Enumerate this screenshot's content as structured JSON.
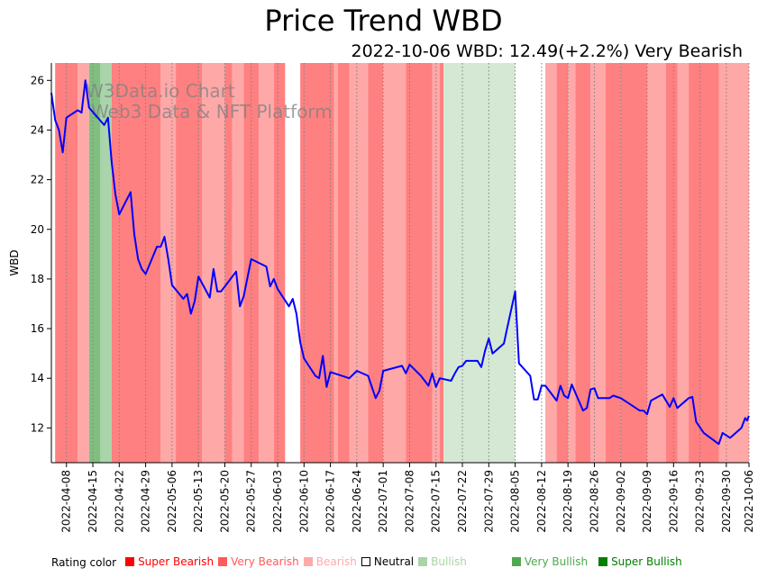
{
  "header": {
    "title": "Price Trend WBD",
    "subtitle": "2022-10-06 WBD: 12.49(+2.2%) Very Bearish"
  },
  "watermark": {
    "line1": "W3Data.io Chart",
    "line2": "Web3 Data & NFT Platform"
  },
  "legend": {
    "label": "Rating color",
    "items": [
      {
        "name": "Super Bearish",
        "color": "#ff0000",
        "text_color": "#ff0000"
      },
      {
        "name": "Very Bearish",
        "color": "#ff5a5a",
        "text_color": "#ff5a5a"
      },
      {
        "name": "Bearish",
        "color": "#ffaaaa",
        "text_color": "#ffaaaa"
      },
      {
        "name": "Neutral",
        "color": "#ffffff",
        "text_color": "#000000"
      },
      {
        "name": "Bullish",
        "color": "#a8d4a8",
        "text_color": "#a8d4a8"
      },
      {
        "name": "Very Bullish",
        "color": "#4fa84f",
        "text_color": "#4fa84f"
      },
      {
        "name": "Super Bullish",
        "color": "#007f00",
        "text_color": "#007f00"
      }
    ]
  },
  "chart_data": {
    "type": "line",
    "title": "Price Trend WBD",
    "subtitle": "2022-10-06 WBD: 12.49(+2.2%) Very Bearish",
    "xlabel": "",
    "ylabel": "WBD",
    "xlim": [
      "2022-04-04",
      "2022-10-06"
    ],
    "ylim": [
      10.6,
      26.7
    ],
    "yticks": [
      12,
      14,
      16,
      18,
      20,
      22,
      24,
      26
    ],
    "xticks": [
      "2022-04-08",
      "2022-04-15",
      "2022-04-22",
      "2022-04-29",
      "2022-05-06",
      "2022-05-13",
      "2022-05-20",
      "2022-05-27",
      "2022-06-03",
      "2022-06-10",
      "2022-06-17",
      "2022-06-24",
      "2022-07-01",
      "2022-07-08",
      "2022-07-15",
      "2022-07-22",
      "2022-07-29",
      "2022-08-05",
      "2022-08-12",
      "2022-08-19",
      "2022-08-26",
      "2022-09-02",
      "2022-09-09",
      "2022-09-16",
      "2022-09-23",
      "2022-09-30",
      "2022-10-06"
    ],
    "grid": "vertical dotted at x ticks",
    "line_color": "#0000ff",
    "series": [
      {
        "name": "WBD",
        "points": [
          [
            "2022-04-04",
            25.5
          ],
          [
            "2022-04-05",
            24.4
          ],
          [
            "2022-04-06",
            24.0
          ],
          [
            "2022-04-07",
            23.1
          ],
          [
            "2022-04-08",
            24.5
          ],
          [
            "2022-04-11",
            24.8
          ],
          [
            "2022-04-12",
            24.7
          ],
          [
            "2022-04-13",
            26.0
          ],
          [
            "2022-04-14",
            24.9
          ],
          [
            "2022-04-18",
            24.2
          ],
          [
            "2022-04-19",
            24.5
          ],
          [
            "2022-04-20",
            22.7
          ],
          [
            "2022-04-21",
            21.4
          ],
          [
            "2022-04-22",
            20.6
          ],
          [
            "2022-04-25",
            21.5
          ],
          [
            "2022-04-26",
            19.8
          ],
          [
            "2022-04-27",
            18.8
          ],
          [
            "2022-04-28",
            18.4
          ],
          [
            "2022-04-29",
            18.2
          ],
          [
            "2022-05-02",
            19.3
          ],
          [
            "2022-05-03",
            19.3
          ],
          [
            "2022-05-04",
            19.7
          ],
          [
            "2022-05-05",
            18.8
          ],
          [
            "2022-05-06",
            17.75
          ],
          [
            "2022-05-09",
            17.2
          ],
          [
            "2022-05-10",
            17.4
          ],
          [
            "2022-05-11",
            16.6
          ],
          [
            "2022-05-12",
            17.1
          ],
          [
            "2022-05-13",
            18.1
          ],
          [
            "2022-05-16",
            17.25
          ],
          [
            "2022-05-17",
            18.4
          ],
          [
            "2022-05-18",
            17.5
          ],
          [
            "2022-05-19",
            17.5
          ],
          [
            "2022-05-23",
            18.3
          ],
          [
            "2022-05-24",
            16.9
          ],
          [
            "2022-05-25",
            17.3
          ],
          [
            "2022-05-27",
            18.8
          ],
          [
            "2022-05-31",
            18.5
          ],
          [
            "2022-06-01",
            17.7
          ],
          [
            "2022-06-02",
            18.0
          ],
          [
            "2022-06-03",
            17.6
          ],
          [
            "2022-06-06",
            16.9
          ],
          [
            "2022-06-07",
            17.2
          ],
          [
            "2022-06-08",
            16.6
          ],
          [
            "2022-06-09",
            15.45
          ],
          [
            "2022-06-10",
            14.8
          ],
          [
            "2022-06-13",
            14.1
          ],
          [
            "2022-06-14",
            14.0
          ],
          [
            "2022-06-15",
            14.9
          ],
          [
            "2022-06-16",
            13.65
          ],
          [
            "2022-06-17",
            14.25
          ],
          [
            "2022-06-22",
            14.0
          ],
          [
            "2022-06-24",
            14.3
          ],
          [
            "2022-06-27",
            14.1
          ],
          [
            "2022-06-29",
            13.2
          ],
          [
            "2022-06-30",
            13.5
          ],
          [
            "2022-07-01",
            14.3
          ],
          [
            "2022-07-06",
            14.5
          ],
          [
            "2022-07-07",
            14.2
          ],
          [
            "2022-07-08",
            14.55
          ],
          [
            "2022-07-11",
            14.1
          ],
          [
            "2022-07-13",
            13.7
          ],
          [
            "2022-07-14",
            14.2
          ],
          [
            "2022-07-15",
            13.65
          ],
          [
            "2022-07-16",
            14.0
          ],
          [
            "2022-07-19",
            13.9
          ],
          [
            "2022-07-20",
            14.2
          ],
          [
            "2022-07-21",
            14.45
          ],
          [
            "2022-07-22",
            14.5
          ],
          [
            "2022-07-23",
            14.7
          ],
          [
            "2022-07-26",
            14.7
          ],
          [
            "2022-07-27",
            14.45
          ],
          [
            "2022-07-28",
            15.1
          ],
          [
            "2022-07-29",
            15.6
          ],
          [
            "2022-07-30",
            15.0
          ],
          [
            "2022-08-02",
            15.4
          ],
          [
            "2022-08-03",
            16.1
          ],
          [
            "2022-08-05",
            17.5
          ],
          [
            "2022-08-06",
            14.6
          ],
          [
            "2022-08-09",
            14.1
          ],
          [
            "2022-08-10",
            13.15
          ],
          [
            "2022-08-11",
            13.15
          ],
          [
            "2022-08-12",
            13.7
          ],
          [
            "2022-08-13",
            13.7
          ],
          [
            "2022-08-16",
            13.1
          ],
          [
            "2022-08-17",
            13.7
          ],
          [
            "2022-08-18",
            13.3
          ],
          [
            "2022-08-19",
            13.2
          ],
          [
            "2022-08-20",
            13.75
          ],
          [
            "2022-08-23",
            12.7
          ],
          [
            "2022-08-24",
            12.8
          ],
          [
            "2022-08-25",
            13.55
          ],
          [
            "2022-08-26",
            13.6
          ],
          [
            "2022-08-27",
            13.2
          ],
          [
            "2022-08-30",
            13.2
          ],
          [
            "2022-08-31",
            13.3
          ],
          [
            "2022-09-02",
            13.2
          ],
          [
            "2022-09-07",
            12.7
          ],
          [
            "2022-09-08",
            12.7
          ],
          [
            "2022-09-09",
            12.55
          ],
          [
            "2022-09-10",
            13.1
          ],
          [
            "2022-09-13",
            13.35
          ],
          [
            "2022-09-15",
            12.85
          ],
          [
            "2022-09-16",
            13.2
          ],
          [
            "2022-09-17",
            12.8
          ],
          [
            "2022-09-20",
            13.2
          ],
          [
            "2022-09-21",
            13.25
          ],
          [
            "2022-09-22",
            12.25
          ],
          [
            "2022-09-24",
            11.8
          ],
          [
            "2022-09-28",
            11.35
          ],
          [
            "2022-09-29",
            11.8
          ],
          [
            "2022-10-01",
            11.6
          ],
          [
            "2022-10-04",
            12.0
          ],
          [
            "2022-10-05",
            12.4
          ],
          [
            "2022-10-05T12",
            12.3
          ],
          [
            "2022-10-06",
            12.49
          ]
        ]
      }
    ],
    "rating_bands": [
      {
        "start": "2022-04-05",
        "end": "2022-04-11",
        "rating": "Very Bearish"
      },
      {
        "start": "2022-04-11",
        "end": "2022-04-14",
        "rating": "Bearish"
      },
      {
        "start": "2022-04-14",
        "end": "2022-04-17",
        "rating": "Very Bullish"
      },
      {
        "start": "2022-04-17",
        "end": "2022-04-20",
        "rating": "Bullish"
      },
      {
        "start": "2022-04-20",
        "end": "2022-05-03",
        "rating": "Very Bearish"
      },
      {
        "start": "2022-05-03",
        "end": "2022-05-07",
        "rating": "Bearish"
      },
      {
        "start": "2022-05-07",
        "end": "2022-05-14",
        "rating": "Very Bearish"
      },
      {
        "start": "2022-05-14",
        "end": "2022-05-20",
        "rating": "Bearish"
      },
      {
        "start": "2022-05-20",
        "end": "2022-05-22",
        "rating": "Very Bearish"
      },
      {
        "start": "2022-05-22",
        "end": "2022-05-25",
        "rating": "Bearish"
      },
      {
        "start": "2022-05-25",
        "end": "2022-05-29",
        "rating": "Very Bearish"
      },
      {
        "start": "2022-05-29",
        "end": "2022-06-02",
        "rating": "Bearish"
      },
      {
        "start": "2022-06-02",
        "end": "2022-06-05",
        "rating": "Very Bearish"
      },
      {
        "start": "2022-06-05",
        "end": "2022-06-09",
        "rating": "Neutral"
      },
      {
        "start": "2022-06-09",
        "end": "2022-06-18",
        "rating": "Very Bearish"
      },
      {
        "start": "2022-06-18",
        "end": "2022-06-19",
        "rating": "Bearish"
      },
      {
        "start": "2022-06-19",
        "end": "2022-06-22",
        "rating": "Very Bearish"
      },
      {
        "start": "2022-06-22",
        "end": "2022-06-27",
        "rating": "Bearish"
      },
      {
        "start": "2022-06-27",
        "end": "2022-07-01",
        "rating": "Very Bearish"
      },
      {
        "start": "2022-07-01",
        "end": "2022-07-07",
        "rating": "Bearish"
      },
      {
        "start": "2022-07-07",
        "end": "2022-07-14",
        "rating": "Very Bearish"
      },
      {
        "start": "2022-07-14",
        "end": "2022-07-16",
        "rating": "Bearish"
      },
      {
        "start": "2022-07-16",
        "end": "2022-07-17",
        "rating": "Very Bearish"
      },
      {
        "start": "2022-07-17",
        "end": "2022-08-05",
        "rating": "Bullish (faded)"
      },
      {
        "start": "2022-08-05",
        "end": "2022-08-13",
        "rating": "Neutral"
      },
      {
        "start": "2022-08-13",
        "end": "2022-08-16",
        "rating": "Bearish"
      },
      {
        "start": "2022-08-16",
        "end": "2022-08-19",
        "rating": "Very Bearish"
      },
      {
        "start": "2022-08-19",
        "end": "2022-08-21",
        "rating": "Bearish"
      },
      {
        "start": "2022-08-21",
        "end": "2022-08-25",
        "rating": "Very Bearish"
      },
      {
        "start": "2022-08-25",
        "end": "2022-08-29",
        "rating": "Bearish"
      },
      {
        "start": "2022-08-29",
        "end": "2022-09-02",
        "rating": "Very Bearish"
      },
      {
        "start": "2022-09-02",
        "end": "2022-09-09",
        "rating": "Very Bearish"
      },
      {
        "start": "2022-09-09",
        "end": "2022-09-14",
        "rating": "Bearish"
      },
      {
        "start": "2022-09-14",
        "end": "2022-09-17",
        "rating": "Very Bearish"
      },
      {
        "start": "2022-09-17",
        "end": "2022-09-20",
        "rating": "Bearish"
      },
      {
        "start": "2022-09-20",
        "end": "2022-09-28",
        "rating": "Very Bearish"
      },
      {
        "start": "2022-09-28",
        "end": "2022-10-06",
        "rating": "Bearish"
      }
    ],
    "band_colors": {
      "Very Bearish": "#ff8080",
      "Bearish": "#ffa8a8",
      "Very Bullish": "#80bf80",
      "Bullish": "#aad4aa",
      "Bullish (faded)": "#d4e8d4",
      "Neutral": "#ffffff"
    },
    "legend_position": "bottom"
  }
}
